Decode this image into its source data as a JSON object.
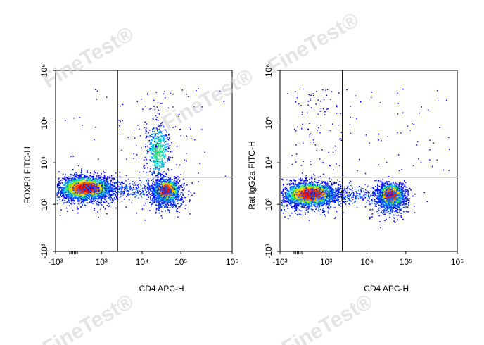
{
  "watermark": "FineTest®",
  "chart_data": [
    {
      "type": "scatter",
      "subtype": "flow-cytometry-density-dot-plot",
      "xlabel": "CD4 APC-H",
      "ylabel": "FOXP3 FITC-H",
      "x_scale": "biexponential",
      "y_scale": "biexponential",
      "x_ticks": [
        "-10³",
        "10³",
        "10⁴",
        "10⁵",
        "10⁶"
      ],
      "y_ticks": [
        "-10³",
        "10³",
        "10⁴",
        "10⁵",
        "10⁶"
      ],
      "xlim": [
        -1000,
        1000000
      ],
      "ylim": [
        -1000,
        1000000
      ],
      "gate": {
        "x": 2500,
        "y": 4500
      },
      "populations": [
        {
          "x": 300,
          "y": 2500,
          "density": "high"
        },
        {
          "x": 40000,
          "y": 2200,
          "density": "high"
        },
        {
          "x": 25000,
          "y": 20000,
          "density": "medium"
        }
      ],
      "grid": false
    },
    {
      "type": "scatter",
      "subtype": "flow-cytometry-density-dot-plot",
      "xlabel": "CD4 APC-H",
      "ylabel": "Rat IgG2a FITC-H",
      "x_scale": "biexponential",
      "y_scale": "biexponential",
      "x_ticks": [
        "-10³",
        "10³",
        "10⁴",
        "10⁵",
        "10⁶"
      ],
      "y_ticks": [
        "-10³",
        "10³",
        "10⁴",
        "10⁵",
        "10⁶"
      ],
      "xlim": [
        -1000,
        1000000
      ],
      "ylim": [
        -1000,
        1000000
      ],
      "gate": {
        "x": 2500,
        "y": 4500
      },
      "populations": [
        {
          "x": 300,
          "y": 1800,
          "density": "high"
        },
        {
          "x": 40000,
          "y": 1700,
          "density": "high"
        }
      ],
      "grid": false
    }
  ]
}
